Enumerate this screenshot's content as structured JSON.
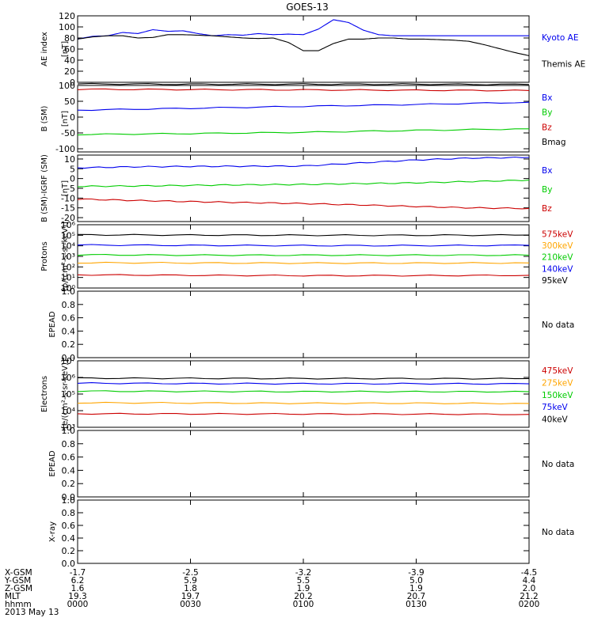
{
  "title": "GOES-13",
  "colors": {
    "black": "#000000",
    "blue": "#0000ee",
    "red": "#cc0000",
    "green": "#00cc00",
    "orange": "#ffa500"
  },
  "chart_data": [
    {
      "type": "line",
      "id": "ae",
      "ylabel": [
        "AE index",
        "[nT]"
      ],
      "scale": "linear",
      "ylim": [
        0,
        120
      ],
      "ticks": [
        "0",
        "20",
        "40",
        "60",
        "80",
        "100",
        "120"
      ],
      "tick_values": [
        0,
        20,
        40,
        60,
        80,
        100,
        120
      ],
      "x_hhmm": [
        0,
        4,
        8,
        12,
        16,
        20,
        24,
        28,
        32,
        36,
        40,
        44,
        48,
        52,
        56,
        60,
        64,
        68,
        72,
        76,
        80,
        84,
        88,
        92,
        96,
        100,
        104,
        108,
        112,
        116,
        120
      ],
      "series": [
        {
          "name": "Kyoto AE",
          "color": "blue",
          "values": [
            78,
            83,
            84,
            90,
            88,
            95,
            92,
            93,
            88,
            84,
            86,
            85,
            88,
            86,
            87,
            86,
            96,
            113,
            108,
            94,
            86,
            84,
            84,
            84,
            84,
            84,
            84,
            84,
            84,
            84,
            84
          ]
        },
        {
          "name": "Themis AE",
          "color": "black",
          "values": [
            78,
            82,
            84,
            84,
            80,
            81,
            86,
            86,
            85,
            84,
            82,
            80,
            79,
            80,
            72,
            57,
            57,
            70,
            78,
            78,
            80,
            80,
            78,
            78,
            77,
            76,
            74,
            68,
            61,
            54,
            48
          ]
        }
      ]
    },
    {
      "type": "line",
      "id": "bsm",
      "ylabel": [
        "B (SM)",
        "[nT]"
      ],
      "scale": "linear",
      "ylim": [
        -110,
        100
      ],
      "ticks": [
        "-100",
        "-50",
        "0",
        "50",
        "100"
      ],
      "tick_values": [
        -100,
        -50,
        0,
        50,
        100
      ],
      "x_hhmm": [
        0,
        30,
        60,
        90,
        120
      ],
      "series": [
        {
          "name": "Bx",
          "color": "blue",
          "values": [
            22,
            28,
            34,
            40,
            47
          ]
        },
        {
          "name": "By",
          "color": "green",
          "values": [
            -55,
            -52,
            -48,
            -42,
            -37
          ]
        },
        {
          "name": "Bz",
          "color": "red",
          "values": [
            88,
            87,
            86,
            85,
            84
          ]
        },
        {
          "name": "Bmag",
          "color": "black",
          "values": [
            105,
            104,
            104,
            104,
            103
          ]
        }
      ]
    },
    {
      "type": "line",
      "id": "bdiff",
      "ylabel": [
        "B (SM)-IGRF (SM)",
        "[nT]"
      ],
      "scale": "linear",
      "ylim": [
        -22,
        12
      ],
      "ticks": [
        "-20",
        "-15",
        "-10",
        "-5",
        "0",
        "5",
        "10"
      ],
      "tick_values": [
        -20,
        -15,
        -10,
        -5,
        0,
        5,
        10
      ],
      "x_hhmm": [
        0,
        15,
        30,
        45,
        60,
        75,
        90,
        105,
        120
      ],
      "series": [
        {
          "name": "Bx",
          "color": "blue",
          "values": [
            5.5,
            6.0,
            6.2,
            6.3,
            6.4,
            8.0,
            9.5,
            10.5,
            10.8
          ]
        },
        {
          "name": "By",
          "color": "green",
          "values": [
            -4.0,
            -3.8,
            -3.5,
            -3.2,
            -3.0,
            -2.6,
            -2.2,
            -1.5,
            -0.8
          ]
        },
        {
          "name": "Bz",
          "color": "red",
          "values": [
            -10.5,
            -11.2,
            -11.8,
            -12.3,
            -12.8,
            -13.5,
            -14.3,
            -15.0,
            -15.3
          ]
        }
      ]
    },
    {
      "type": "line",
      "id": "protons",
      "ylabel": [
        "Protons",
        "[p/(cm²-s-sr-keV)]"
      ],
      "scale": "log",
      "ylim": [
        1,
        1000000
      ],
      "ticks": [
        "10⁰",
        "10¹",
        "10²",
        "10³",
        "10⁴",
        "10⁵",
        "10⁶"
      ],
      "tick_values": [
        1,
        10,
        100,
        1000,
        10000,
        100000,
        1000000
      ],
      "x_hhmm": [
        0,
        30,
        60,
        90,
        120
      ],
      "series": [
        {
          "name": "575keV",
          "color": "red",
          "values": [
            18,
            16,
            15,
            15,
            16
          ]
        },
        {
          "name": "300keV",
          "color": "orange",
          "values": [
            250,
            240,
            230,
            230,
            240
          ]
        },
        {
          "name": "210keV",
          "color": "green",
          "values": [
            1400,
            1300,
            1300,
            1300,
            1300
          ]
        },
        {
          "name": "140keV",
          "color": "blue",
          "values": [
            12000,
            11000,
            10500,
            10500,
            11000
          ]
        },
        {
          "name": "95keV",
          "color": "black",
          "values": [
            110000,
            105000,
            100000,
            100000,
            105000
          ]
        }
      ]
    },
    {
      "type": "line",
      "id": "epead1",
      "ylabel": [
        "EPEAD"
      ],
      "scale": "linear",
      "ylim": [
        0,
        1
      ],
      "ticks": [
        "0.0",
        "0.2",
        "0.4",
        "0.6",
        "0.8",
        "1.0"
      ],
      "tick_values": [
        0,
        0.2,
        0.4,
        0.6,
        0.8,
        1.0
      ],
      "x_hhmm": [],
      "series": [],
      "note": "No data"
    },
    {
      "type": "line",
      "id": "electrons",
      "ylabel": [
        "Electrons",
        "[e/(cm²-s-sr-keV)]"
      ],
      "scale": "log",
      "ylim": [
        1000,
        10000000
      ],
      "ticks": [
        "10³",
        "10⁴",
        "10⁵",
        "10⁶",
        "10⁷"
      ],
      "tick_values": [
        1000,
        10000,
        100000,
        1000000,
        10000000
      ],
      "x_hhmm": [
        0,
        30,
        60,
        90,
        120
      ],
      "series": [
        {
          "name": "475keV",
          "color": "red",
          "values": [
            6500,
            6400,
            6300,
            6200,
            6000
          ]
        },
        {
          "name": "275keV",
          "color": "orange",
          "values": [
            30000,
            29000,
            28000,
            28000,
            27000
          ]
        },
        {
          "name": "150keV",
          "color": "green",
          "values": [
            150000,
            145000,
            140000,
            140000,
            138000
          ]
        },
        {
          "name": "75keV",
          "color": "blue",
          "values": [
            450000,
            430000,
            420000,
            420000,
            410000
          ]
        },
        {
          "name": "40keV",
          "color": "black",
          "values": [
            900000,
            880000,
            860000,
            850000,
            850000
          ]
        }
      ]
    },
    {
      "type": "line",
      "id": "epead2",
      "ylabel": [
        "EPEAD"
      ],
      "scale": "linear",
      "ylim": [
        0,
        1
      ],
      "ticks": [
        "0.0",
        "0.2",
        "0.4",
        "0.6",
        "0.8",
        "1.0"
      ],
      "tick_values": [
        0,
        0.2,
        0.4,
        0.6,
        0.8,
        1.0
      ],
      "x_hhmm": [],
      "series": [],
      "note": "No data"
    },
    {
      "type": "line",
      "id": "xray",
      "ylabel": [
        "X-ray"
      ],
      "scale": "linear",
      "ylim": [
        0,
        1
      ],
      "ticks": [
        "0.0",
        "0.2",
        "0.4",
        "0.6",
        "0.8",
        "1.0"
      ],
      "tick_values": [
        0,
        0.2,
        0.4,
        0.6,
        0.8,
        1.0
      ],
      "x_hhmm": [],
      "series": [],
      "note": "No data"
    }
  ],
  "ephemeris": {
    "labels": [
      "X-GSM",
      "Y-GSM",
      "Z-GSM",
      "MLT",
      "hhmm"
    ],
    "columns": [
      [
        "-1.7",
        "6.2",
        "1.6",
        "19.3",
        "0000"
      ],
      [
        "-2.5",
        "5.9",
        "1.8",
        "19.7",
        "0030"
      ],
      [
        "-3.2",
        "5.5",
        "1.9",
        "20.2",
        "0100"
      ],
      [
        "-3.9",
        "5.0",
        "1.9",
        "20.7",
        "0130"
      ],
      [
        "-4.5",
        "4.4",
        "2.0",
        "21.2",
        "0200"
      ]
    ],
    "date": "2013 May 13"
  }
}
